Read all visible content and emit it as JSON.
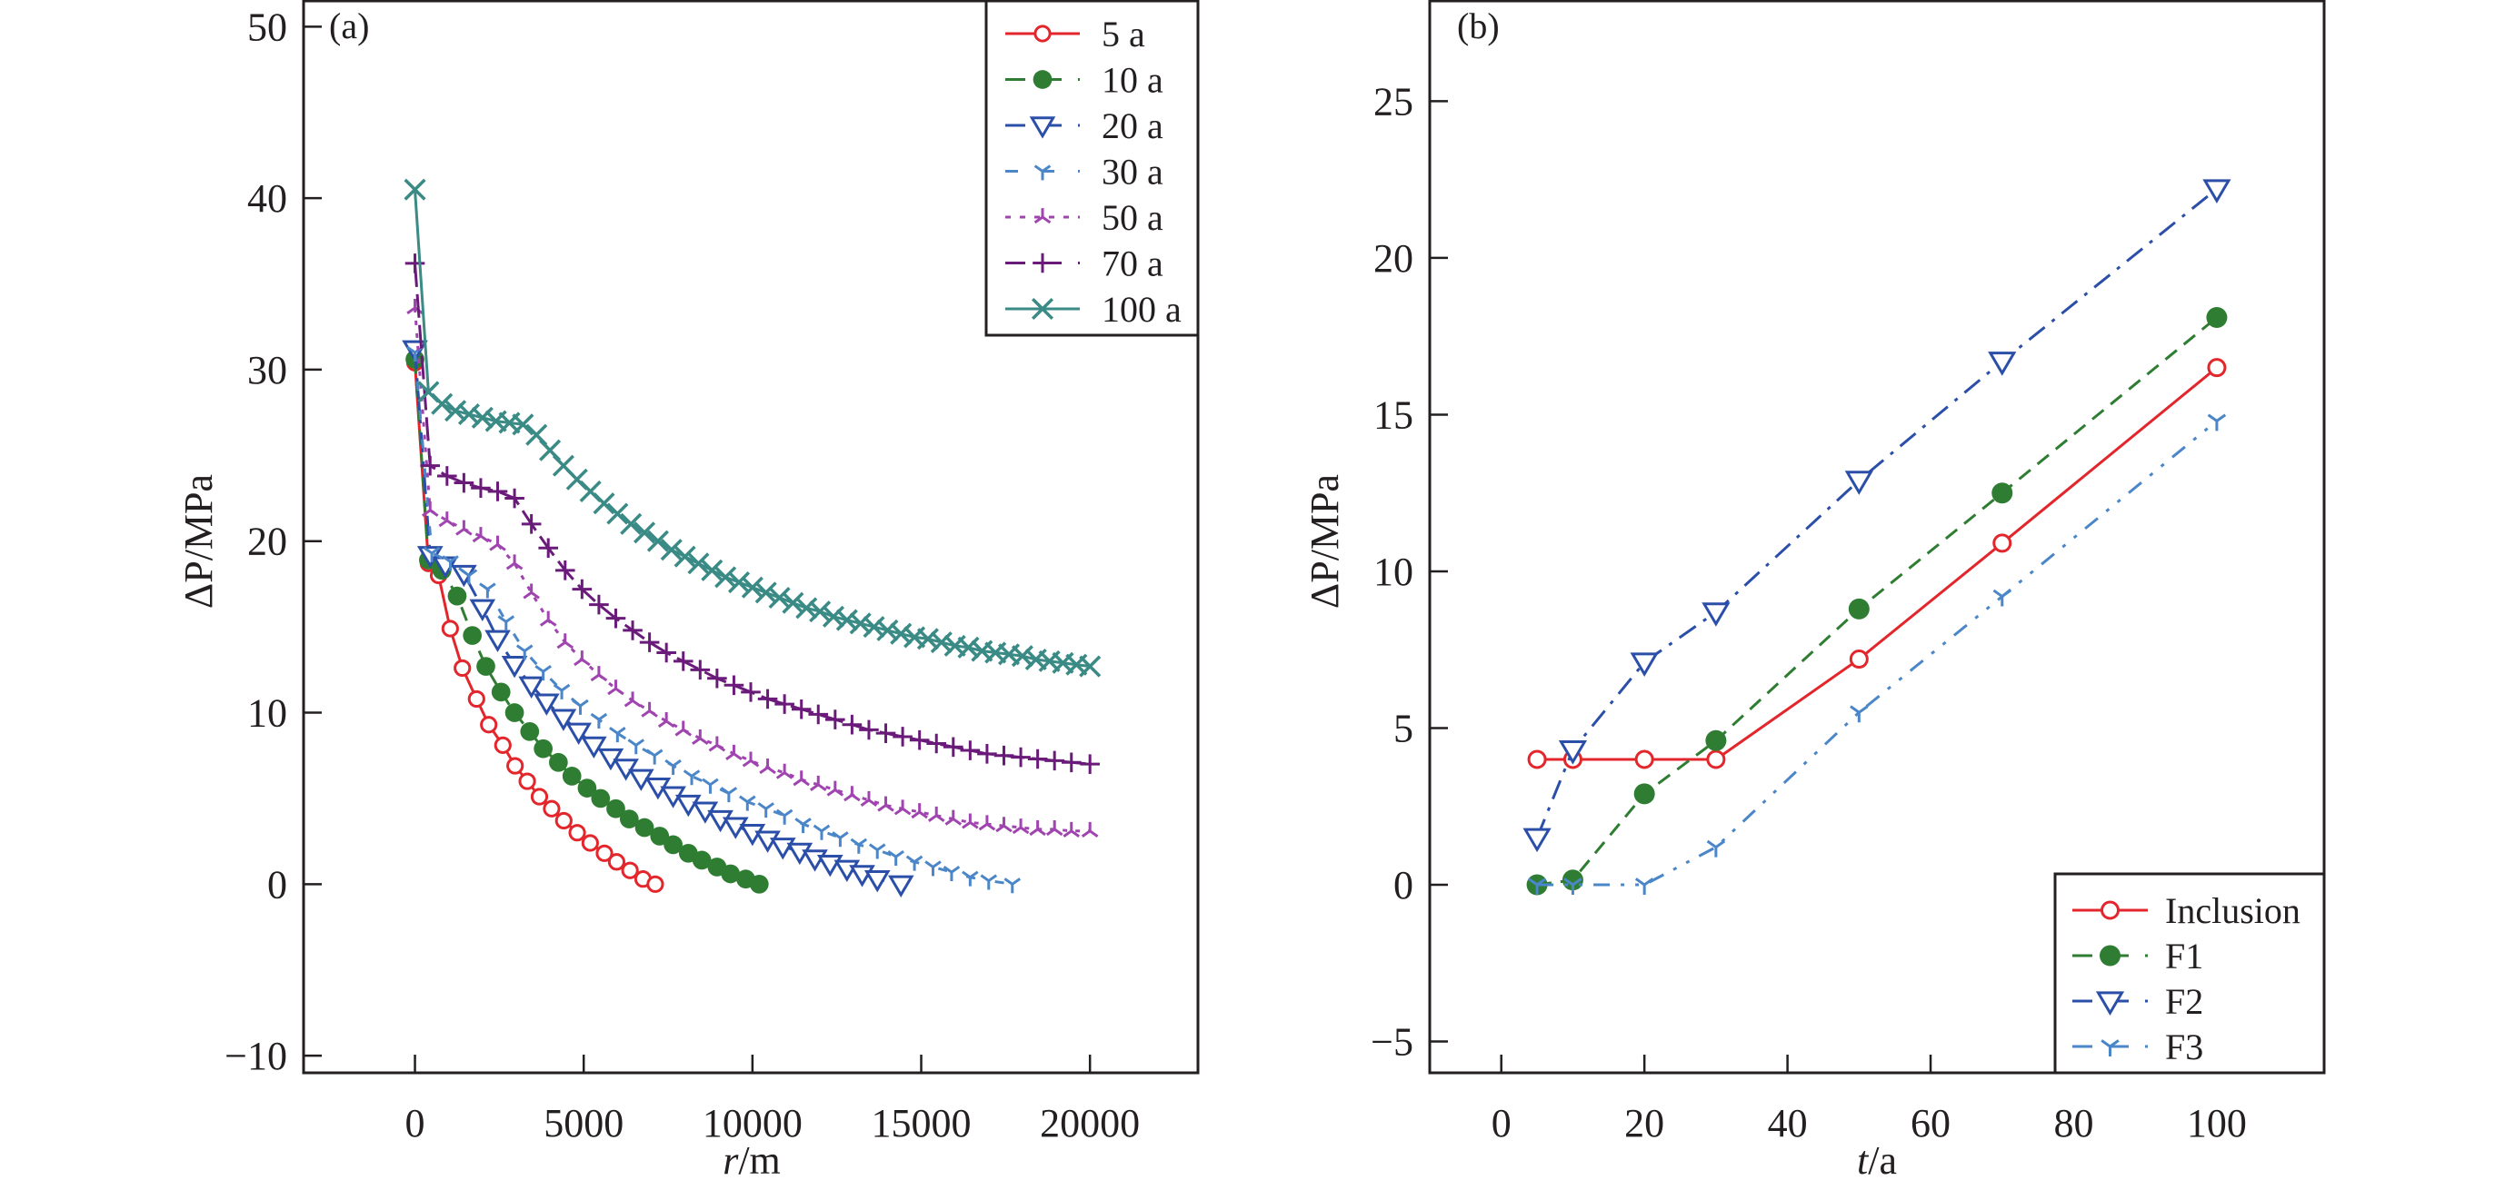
{
  "figure": {
    "panels": [
      "a",
      "b"
    ]
  },
  "chart_data": [
    {
      "id": "a",
      "type": "line",
      "panel_label": "(a)",
      "title": "",
      "xlabel_italic": "r",
      "xlabel_unit": "/m",
      "ylabel": "ΔP/MPa",
      "xlim": [
        -3300,
        23200
      ],
      "ylim": [
        -11,
        51.5
      ],
      "xticks": [
        0,
        5000,
        10000,
        15000,
        20000
      ],
      "xtick_labels": [
        "0",
        "5000",
        "10000",
        "15000",
        "20000"
      ],
      "yticks": [
        -10,
        0,
        10,
        20,
        30,
        40,
        50
      ],
      "ytick_labels": [
        "−10",
        "0",
        "10",
        "20",
        "30",
        "40",
        "50"
      ],
      "grid": false,
      "legend_position": "top-right",
      "series": [
        {
          "name": "5 a",
          "color": "#e3262c",
          "dash": "solid",
          "marker": "open-circle",
          "x": [
            0,
            400,
            700,
            1045,
            1405,
            1825,
            2186,
            2605,
            2966,
            3327,
            3688,
            4050,
            4410,
            4808,
            5193,
            5614,
            5975,
            6372,
            6758,
            7120
          ],
          "y": [
            30.4,
            18.7,
            18.0,
            14.9,
            12.6,
            10.8,
            9.3,
            8.1,
            6.9,
            6.0,
            5.1,
            4.4,
            3.7,
            3.0,
            2.4,
            1.8,
            1.3,
            0.8,
            0.3,
            0.0
          ]
        },
        {
          "name": "10 a",
          "color": "#2e7d32",
          "dash": "dashed",
          "marker": "filled-circle",
          "x": [
            0,
            400,
            800,
            1250,
            1700,
            2100,
            2550,
            2950,
            3400,
            3800,
            4250,
            4650,
            5100,
            5500,
            5950,
            6350,
            6800,
            7250,
            7650,
            8100,
            8500,
            8950,
            9350,
            9800,
            10200
          ],
          "y": [
            30.6,
            18.9,
            18.3,
            16.8,
            14.5,
            12.7,
            11.2,
            10.0,
            8.9,
            7.9,
            7.1,
            6.3,
            5.6,
            5.0,
            4.4,
            3.8,
            3.3,
            2.8,
            2.3,
            1.8,
            1.4,
            1.0,
            0.6,
            0.3,
            0.0
          ]
        },
        {
          "name": "20 a",
          "color": "#2b4fa8",
          "dash": "dashdot",
          "marker": "open-triangle-down",
          "x": [
            0,
            450,
            900,
            1450,
            2000,
            2450,
            2950,
            3450,
            3900,
            4400,
            4850,
            5300,
            5800,
            6250,
            6700,
            7200,
            7650,
            8100,
            8600,
            9050,
            9500,
            10000,
            10450,
            10900,
            11400,
            11850,
            12300,
            12800,
            13250,
            13700,
            14400
          ],
          "y": [
            31.2,
            19.2,
            18.6,
            18.1,
            16.1,
            14.3,
            12.8,
            11.6,
            10.6,
            9.7,
            8.9,
            8.1,
            7.4,
            6.8,
            6.2,
            5.7,
            5.2,
            4.7,
            4.3,
            3.8,
            3.4,
            3.0,
            2.6,
            2.2,
            1.9,
            1.5,
            1.2,
            0.9,
            0.6,
            0.3,
            0.0
          ]
        },
        {
          "name": "30 a",
          "color": "#4a86c8",
          "dash": "loosedash",
          "marker": "tri-down",
          "x": [
            0,
            500,
            1050,
            1600,
            2150,
            2700,
            3250,
            3800,
            4350,
            4900,
            5450,
            6000,
            6550,
            7100,
            7650,
            8200,
            8750,
            9300,
            9850,
            10400,
            10950,
            11500,
            12050,
            12600,
            13150,
            13700,
            14250,
            14800,
            15350,
            15900,
            16450,
            17000,
            17700
          ],
          "y": [
            31.0,
            19.3,
            18.8,
            18.0,
            17.2,
            15.3,
            13.6,
            12.4,
            11.3,
            10.4,
            9.6,
            8.8,
            8.1,
            7.5,
            6.9,
            6.3,
            5.8,
            5.3,
            4.8,
            4.4,
            4.0,
            3.5,
            3.1,
            2.7,
            2.3,
            2.0,
            1.6,
            1.3,
            1.0,
            0.7,
            0.4,
            0.2,
            0.0
          ]
        },
        {
          "name": "50 a",
          "color": "#a044b0",
          "dash": "dotted",
          "marker": "tri-up",
          "x": [
            0,
            450,
            950,
            1450,
            1950,
            2450,
            2950,
            3450,
            3950,
            4450,
            4950,
            5450,
            5950,
            6450,
            6950,
            7450,
            7950,
            8450,
            8950,
            9450,
            9950,
            10450,
            10950,
            11450,
            11950,
            12450,
            12950,
            13450,
            13950,
            14450,
            14950,
            15450,
            15950,
            16450,
            16950,
            17450,
            17950,
            18450,
            18950,
            19450,
            20000
          ],
          "y": [
            33.6,
            21.8,
            21.2,
            20.7,
            20.3,
            19.8,
            18.7,
            17.0,
            15.4,
            14.1,
            13.1,
            12.2,
            11.4,
            10.7,
            10.1,
            9.5,
            9.0,
            8.5,
            8.1,
            7.6,
            7.2,
            6.8,
            6.5,
            6.1,
            5.8,
            5.5,
            5.2,
            4.9,
            4.6,
            4.4,
            4.2,
            4.0,
            3.8,
            3.6,
            3.5,
            3.4,
            3.3,
            3.2,
            3.2,
            3.1,
            3.1
          ]
        },
        {
          "name": "70 a",
          "color": "#6a1b7a",
          "dash": "longdash",
          "marker": "plus",
          "x": [
            0,
            450,
            950,
            1450,
            1950,
            2450,
            2950,
            3450,
            3950,
            4450,
            4950,
            5450,
            5950,
            6450,
            6950,
            7450,
            7950,
            8450,
            8950,
            9450,
            9950,
            10450,
            10950,
            11450,
            11950,
            12450,
            12950,
            13450,
            13950,
            14450,
            14950,
            15450,
            15950,
            16450,
            16950,
            17450,
            17950,
            18450,
            18950,
            19450,
            20000
          ],
          "y": [
            36.2,
            24.4,
            23.8,
            23.4,
            23.1,
            22.9,
            22.5,
            21.0,
            19.6,
            18.3,
            17.2,
            16.3,
            15.5,
            14.8,
            14.1,
            13.5,
            13.0,
            12.5,
            12.0,
            11.6,
            11.2,
            10.8,
            10.5,
            10.2,
            9.9,
            9.6,
            9.3,
            9.0,
            8.8,
            8.6,
            8.4,
            8.2,
            8.0,
            7.8,
            7.6,
            7.5,
            7.4,
            7.3,
            7.2,
            7.1,
            7.0
          ]
        },
        {
          "name": "100 a",
          "color": "#3a8a85",
          "dash": "solid",
          "marker": "x",
          "x": [
            0,
            400,
            800,
            1200,
            1600,
            2000,
            2400,
            2800,
            3200,
            3600,
            4000,
            4400,
            4800,
            5200,
            5600,
            6000,
            6400,
            6800,
            7200,
            7600,
            8000,
            8400,
            8800,
            9200,
            9600,
            10000,
            10400,
            10800,
            11200,
            11600,
            12000,
            12400,
            12800,
            13200,
            13600,
            14000,
            14400,
            14800,
            15200,
            15600,
            16000,
            16400,
            16800,
            17200,
            17600,
            18000,
            18400,
            18800,
            19200,
            19600,
            20000
          ],
          "y": [
            40.5,
            28.7,
            28.0,
            27.6,
            27.4,
            27.2,
            27.0,
            26.9,
            26.8,
            26.2,
            25.3,
            24.4,
            23.6,
            22.9,
            22.2,
            21.6,
            21.0,
            20.5,
            20.0,
            19.5,
            19.1,
            18.7,
            18.3,
            17.9,
            17.6,
            17.3,
            17.0,
            16.7,
            16.4,
            16.1,
            15.9,
            15.6,
            15.4,
            15.2,
            15.0,
            14.8,
            14.6,
            14.4,
            14.3,
            14.1,
            13.9,
            13.8,
            13.6,
            13.5,
            13.4,
            13.3,
            13.1,
            13.0,
            12.9,
            12.8,
            12.7
          ]
        }
      ]
    },
    {
      "id": "b",
      "type": "line",
      "panel_label": "(b)",
      "title": "",
      "xlabel_italic": "t",
      "xlabel_unit": "/a",
      "ylabel": "ΔP/MPa",
      "xlim": [
        -10,
        115
      ],
      "ylim": [
        -6,
        28.2
      ],
      "xticks": [
        0,
        20,
        40,
        60,
        80,
        100
      ],
      "xtick_labels": [
        "0",
        "20",
        "40",
        "60",
        "80",
        "100"
      ],
      "yticks": [
        -5,
        0,
        5,
        10,
        15,
        20,
        25
      ],
      "ytick_labels": [
        "−5",
        "0",
        "5",
        "10",
        "15",
        "20",
        "25"
      ],
      "grid": false,
      "legend_position": "bottom-right",
      "series": [
        {
          "name": "Inclusion",
          "color": "#e3262c",
          "dash": "solid",
          "marker": "open-circle",
          "x": [
            5,
            10,
            20,
            30,
            50,
            70,
            100
          ],
          "y": [
            4.0,
            4.0,
            4.0,
            4.0,
            7.2,
            10.9,
            16.5
          ]
        },
        {
          "name": "F1",
          "color": "#2e7d32",
          "dash": "dashed",
          "marker": "filled-circle",
          "x": [
            5,
            10,
            20,
            30,
            50,
            70,
            100
          ],
          "y": [
            0.0,
            0.15,
            2.9,
            4.6,
            8.8,
            12.5,
            18.1
          ]
        },
        {
          "name": "F2",
          "color": "#2b4fa8",
          "dash": "dashdot",
          "marker": "open-triangle-down",
          "x": [
            5,
            10,
            20,
            30,
            50,
            70,
            100
          ],
          "y": [
            1.5,
            4.3,
            7.1,
            8.7,
            12.9,
            16.7,
            22.2
          ]
        },
        {
          "name": "F3",
          "color": "#4a86c8",
          "dash": "dashdotdot",
          "marker": "tri-down",
          "x": [
            5,
            10,
            20,
            30,
            50,
            70,
            100
          ],
          "y": [
            0.0,
            0.0,
            0.0,
            1.2,
            5.5,
            9.2,
            14.8
          ]
        }
      ]
    }
  ]
}
